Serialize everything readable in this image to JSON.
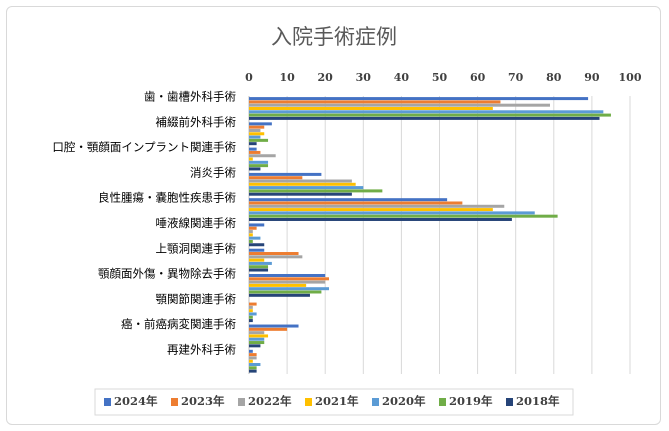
{
  "chart_data": {
    "type": "bar",
    "orientation": "horizontal",
    "title": "入院手術症例",
    "xlim": [
      0,
      100
    ],
    "xticks": [
      0,
      10,
      20,
      30,
      40,
      50,
      60,
      70,
      80,
      90,
      100
    ],
    "x_axis_position": "top",
    "grid": true,
    "legend_position": "bottom",
    "categories": [
      "歯・歯槽外科手術",
      "補綴前外科手術",
      "口腔・顎顔面インプラント関連手術",
      "消炎手術",
      "良性腫瘍・嚢胞性疾患手術",
      "唾液線関連手術",
      "上顎洞関連手術",
      "顎顔面外傷・異物除去手術",
      "顎関節関連手術",
      "癌・前癌病変関連手術",
      "再建外科手術"
    ],
    "series": [
      {
        "name": "2024年",
        "color": "#4472C4",
        "values": [
          89,
          6,
          2,
          19,
          52,
          4,
          4,
          20,
          0,
          13,
          1
        ]
      },
      {
        "name": "2023年",
        "color": "#ED7D31",
        "values": [
          66,
          4,
          3,
          14,
          56,
          2,
          13,
          21,
          2,
          10,
          2
        ]
      },
      {
        "name": "2022年",
        "color": "#A5A5A5",
        "values": [
          79,
          3,
          7,
          27,
          67,
          1,
          14,
          20,
          1,
          4,
          2
        ]
      },
      {
        "name": "2021年",
        "color": "#FFC000",
        "values": [
          64,
          4,
          1,
          28,
          64,
          1,
          4,
          15,
          1,
          5,
          1
        ]
      },
      {
        "name": "2020年",
        "color": "#5B9BD5",
        "values": [
          93,
          3,
          5,
          30,
          75,
          3,
          6,
          21,
          2,
          4,
          3
        ]
      },
      {
        "name": "2019年",
        "color": "#70AD47",
        "values": [
          95,
          5,
          5,
          35,
          81,
          1,
          5,
          19,
          1,
          4,
          2
        ]
      },
      {
        "name": "2018年",
        "color": "#264478",
        "values": [
          92,
          2,
          3,
          27,
          69,
          4,
          5,
          16,
          1,
          3,
          2
        ]
      }
    ]
  }
}
